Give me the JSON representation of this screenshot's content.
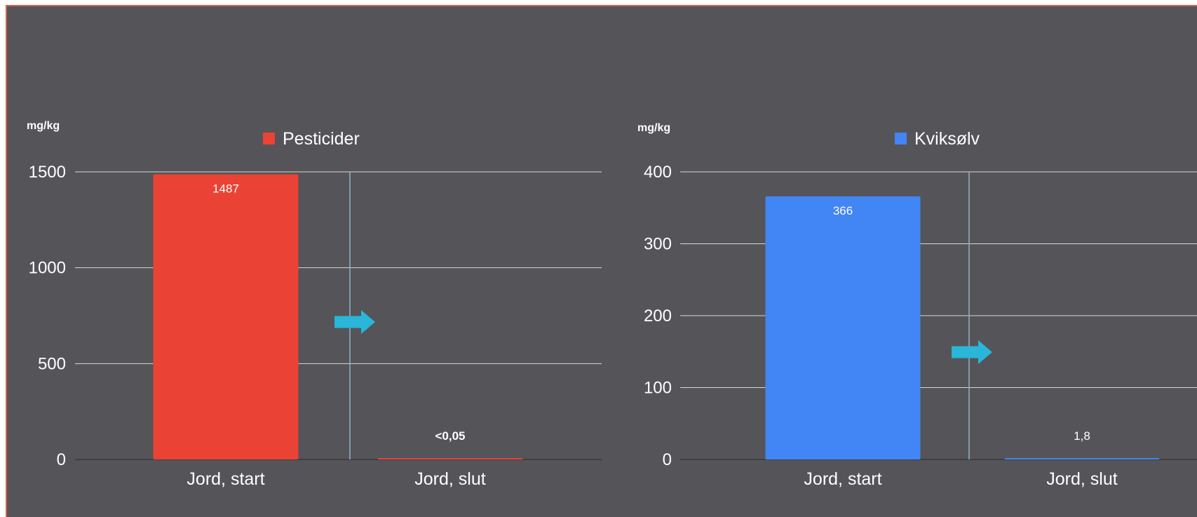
{
  "chart_data": [
    {
      "type": "bar",
      "unit_label": "mg/kg",
      "categories": [
        "Jord, start",
        "Jord, slut"
      ],
      "series": [
        {
          "name": "Pesticider",
          "color": "#ea4335",
          "values": [
            1487,
            0.05
          ],
          "data_labels": [
            "1487",
            "<0,05"
          ]
        }
      ],
      "ylim": [
        0,
        1500
      ],
      "y_ticks": [
        0,
        500,
        1000,
        1500
      ],
      "grid": true,
      "legend_position": "top",
      "annotation": "arrow-right"
    },
    {
      "type": "bar",
      "unit_label": "mg/kg",
      "categories": [
        "Jord, start",
        "Jord, slut"
      ],
      "series": [
        {
          "name": "Kviksølv",
          "color": "#4285f4",
          "values": [
            366,
            1.8
          ],
          "data_labels": [
            "366",
            "1,8"
          ]
        }
      ],
      "ylim": [
        0,
        400
      ],
      "y_ticks": [
        0,
        100,
        200,
        300,
        400
      ],
      "grid": true,
      "legend_position": "top",
      "annotation": "arrow-right"
    }
  ],
  "colors": {
    "background": "#555459",
    "frame_border": "#d9614f",
    "gridline": "#d8d8d8",
    "divider": "#8ab4c8",
    "arrow": "#29b6d8",
    "text": "#ffffff"
  }
}
